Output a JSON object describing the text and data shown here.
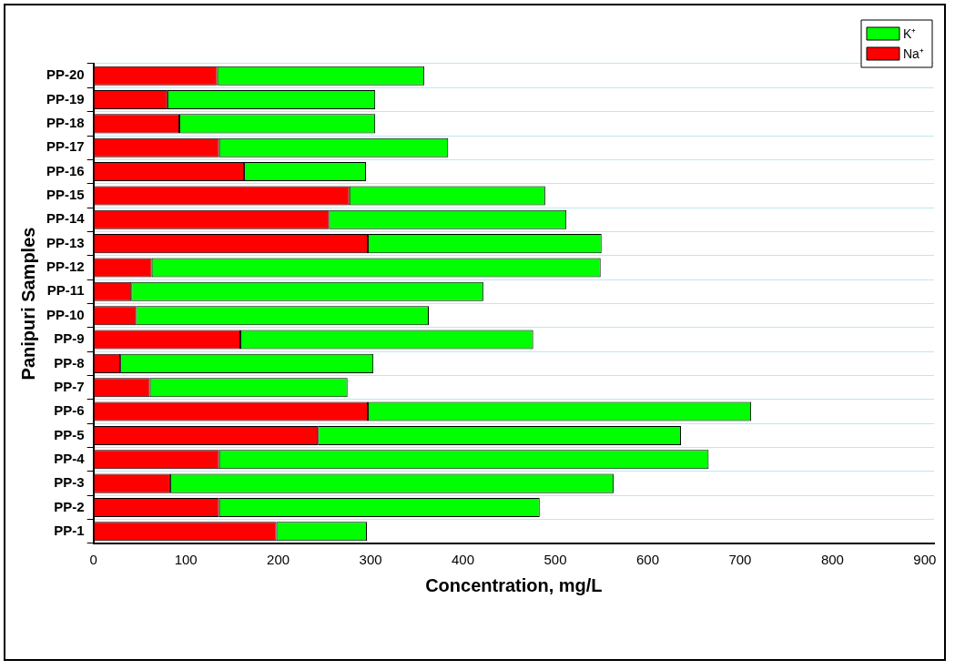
{
  "chart_data": {
    "type": "bar",
    "orientation": "horizontal",
    "stacked": true,
    "xlabel": "Concentration, mg/L",
    "ylabel": "Panipuri Samples",
    "categories": [
      "PP-20",
      "PP-19",
      "PP-18",
      "PP-17",
      "PP-16",
      "PP-15",
      "PP-14",
      "PP-13",
      "PP-12",
      "PP-11",
      "PP-10",
      "PP-9",
      "PP-8",
      "PP-7",
      "PP-6",
      "PP-5",
      "PP-4",
      "PP-3",
      "PP-2",
      "PP-1"
    ],
    "series": [
      {
        "name": "Na⁺",
        "color": "#ff0000",
        "values": [
          134,
          80,
          93,
          136,
          163,
          277,
          255,
          297,
          63,
          41,
          46,
          159,
          29,
          61,
          297,
          243,
          136,
          83,
          136,
          198
        ]
      },
      {
        "name": "K⁺",
        "color": "#00ff00",
        "values": [
          224,
          225,
          212,
          248,
          132,
          212,
          257,
          253,
          486,
          381,
          317,
          317,
          274,
          214,
          415,
          393,
          530,
          480,
          347,
          98
        ]
      }
    ],
    "xlim": [
      0,
      910
    ],
    "xticks": [
      0,
      100,
      200,
      300,
      400,
      500,
      600,
      700,
      800,
      900
    ],
    "grid": "y",
    "legend": "top right"
  }
}
